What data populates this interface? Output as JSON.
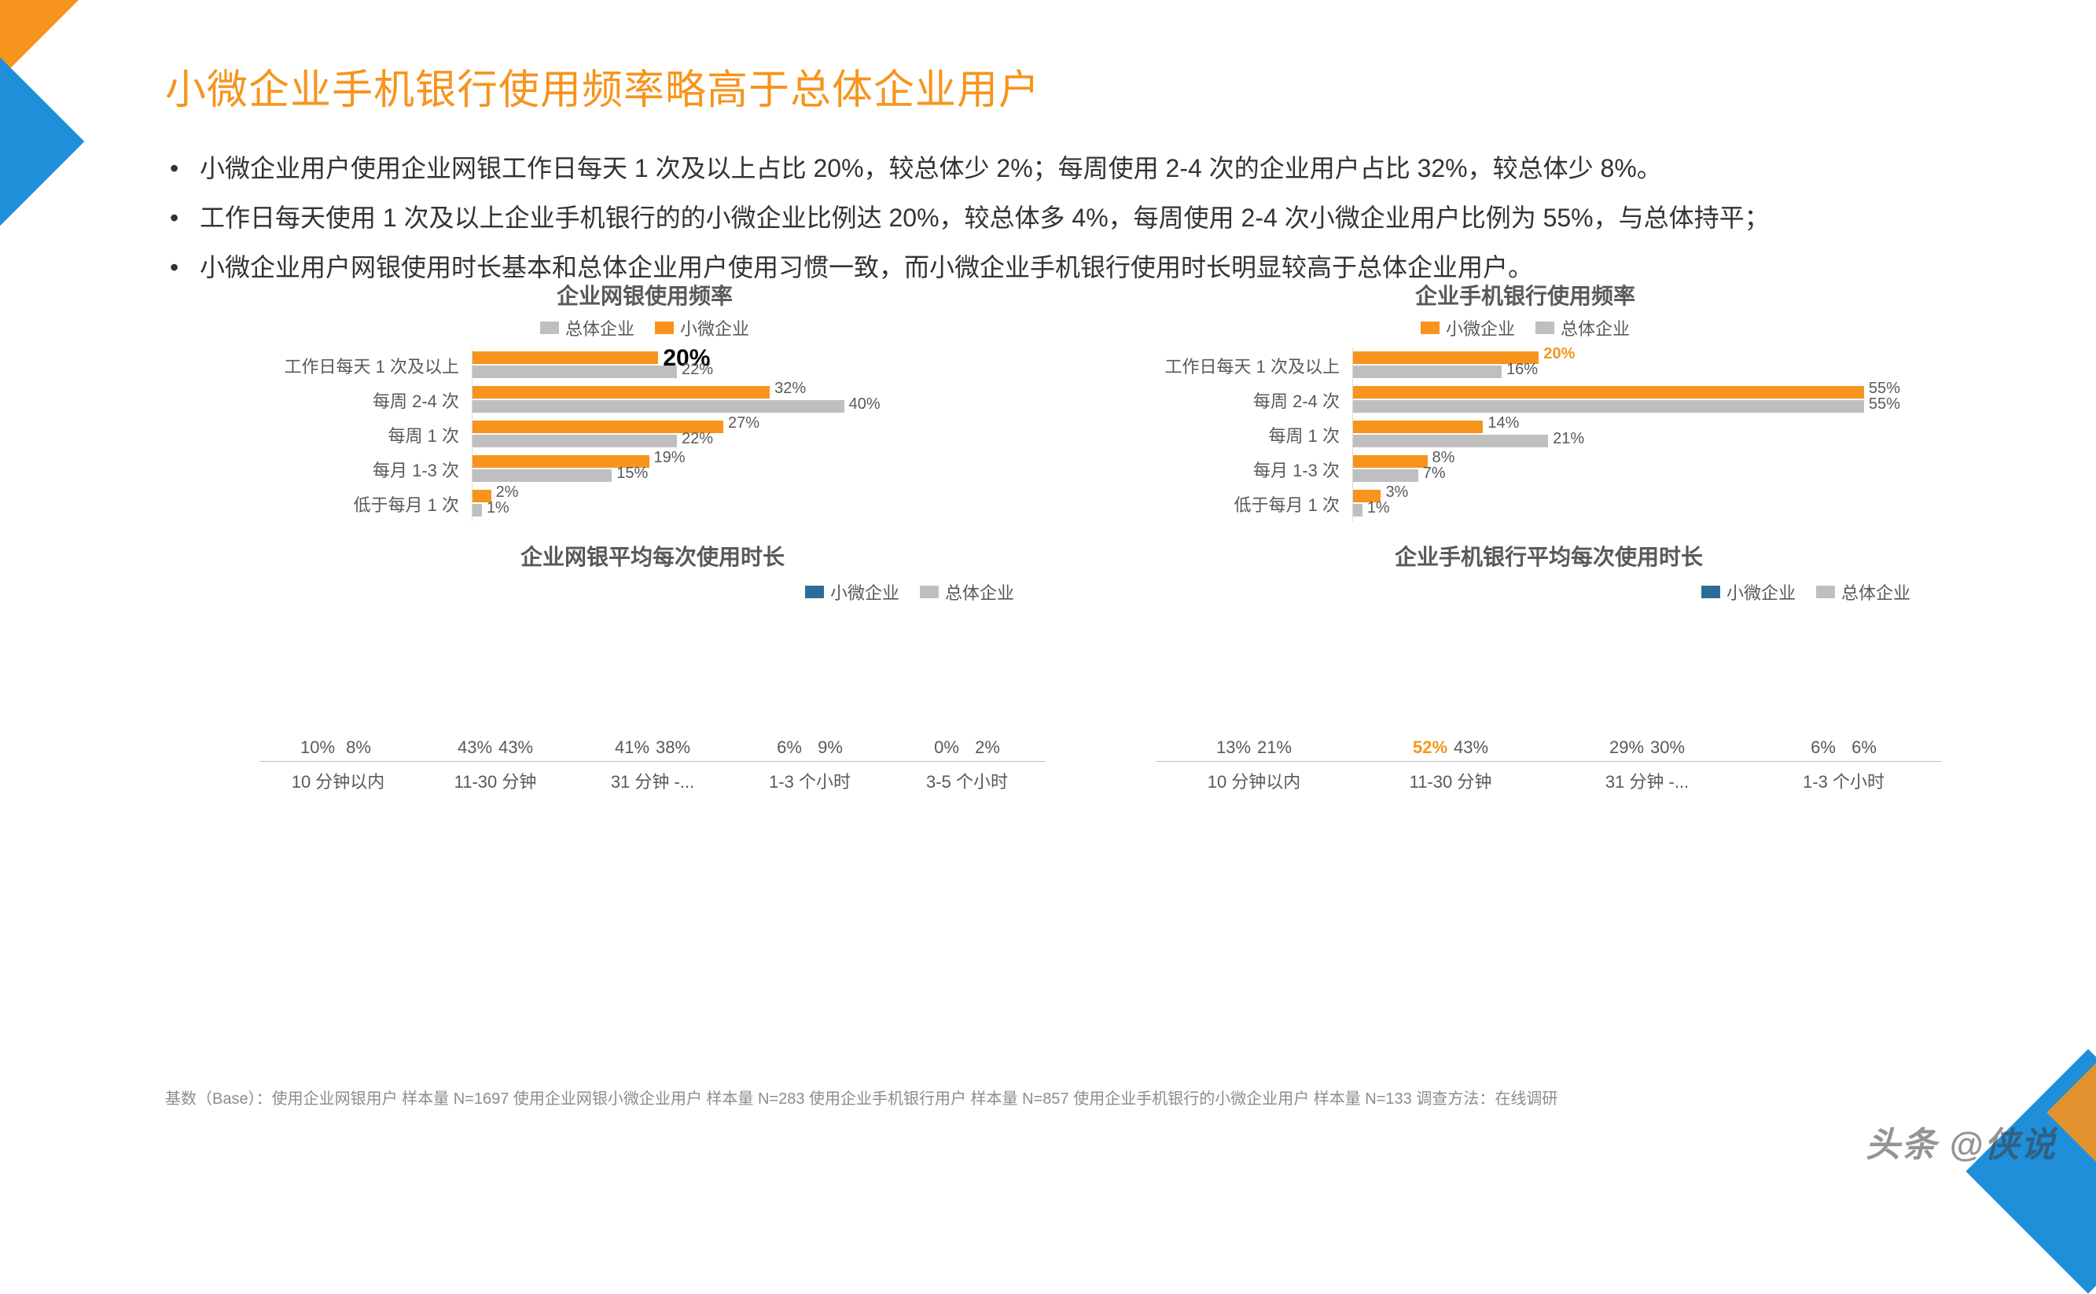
{
  "colors": {
    "orange": "#f7941d",
    "gray": "#bfbfbf",
    "blue": "#2e6c97",
    "lightgray": "#d9d9d9",
    "text": "#595959"
  },
  "title": "小微企业手机银行使用频率略高于总体企业用户",
  "bullets": [
    "小微企业用户使用企业网银工作日每天 1 次及以上占比 20%，较总体少 2%；每周使用 2-4 次的企业用户占比 32%，较总体少 8%。",
    "工作日每天使用 1 次及以上企业手机银行的的小微企业比例达 20%，较总体多 4%，每周使用 2-4 次小微企业用户比例为 55%，与总体持平；",
    "小微企业用户网银使用时长基本和总体企业用户使用习惯一致，而小微企业手机银行使用时长明显较高于总体企业用户。"
  ],
  "hcharts": [
    {
      "title": "企业网银使用频率",
      "legend_order": [
        "gray",
        "orange"
      ],
      "legend_labels": {
        "gray": "总体企业",
        "orange": "小微企业"
      },
      "xmax": 60,
      "categories": [
        "工作日每天 1 次及以上",
        "每周 2-4 次",
        "每周 1 次",
        "每月 1-3 次",
        "低于每月 1 次"
      ],
      "series": {
        "orange": [
          20,
          32,
          27,
          19,
          2
        ],
        "gray": [
          22,
          40,
          22,
          15,
          1
        ]
      },
      "highlights": {
        "0.orange": "big"
      }
    },
    {
      "title": "企业手机银行使用频率",
      "legend_order": [
        "orange",
        "gray"
      ],
      "legend_labels": {
        "orange": "小微企业",
        "gray": "总体企业"
      },
      "xmax": 60,
      "categories": [
        "工作日每天 1 次及以上",
        "每周 2-4 次",
        "每周 1 次",
        "每月 1-3 次",
        "低于每月 1 次"
      ],
      "series": {
        "orange": [
          20,
          55,
          14,
          8,
          3
        ],
        "gray": [
          16,
          55,
          21,
          7,
          1
        ]
      },
      "highlights": {
        "0.orange": "highlight"
      }
    }
  ],
  "vcharts": [
    {
      "title": "企业网银平均每次使用时长",
      "legend_labels": {
        "blue": "小微企业",
        "gray": "总体企业"
      },
      "ymax": 55,
      "categories": [
        "10 分钟以内",
        "11-30 分钟",
        "31 分钟 -...",
        "1-3 个小时",
        "3-5 个小时"
      ],
      "series": {
        "blue": [
          10,
          43,
          41,
          6,
          0
        ],
        "gray": [
          8,
          43,
          38,
          9,
          2
        ]
      },
      "highlights": {}
    },
    {
      "title": "企业手机银行平均每次使用时长",
      "legend_labels": {
        "blue": "小微企业",
        "gray": "总体企业"
      },
      "ymax": 55,
      "categories": [
        "10 分钟以内",
        "11-30 分钟",
        "31 分钟 -...",
        "1-3 个小时"
      ],
      "series": {
        "blue": [
          13,
          52,
          29,
          6
        ],
        "gray": [
          21,
          43,
          30,
          6
        ]
      },
      "highlights": {
        "1.blue": "highlight"
      }
    }
  ],
  "footnote": "基数（Base）：使用企业网银用户  样本量 N=1697   使用企业网银小微企业用户  样本量 N=283        使用企业手机银行用户  样本量 N=857   使用企业手机银行的小微企业用户  样本量 N=133     调查方法：在线调研",
  "watermark": "头条 @侠说"
}
